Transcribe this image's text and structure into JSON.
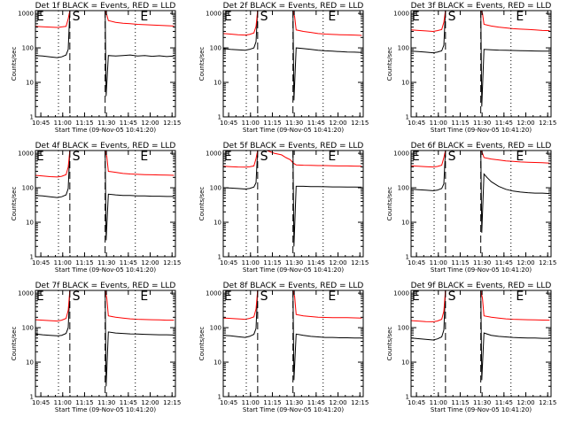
{
  "figure": {
    "xlabel": "Start Time (09-Nov-05 10:41:20)",
    "ylabel": "Counts/sec",
    "y_scale": "log",
    "ylim": [
      1,
      1200
    ],
    "y_ticks": [
      "1",
      "10",
      "100",
      "1000"
    ],
    "x_ticks": [
      "10:45",
      "11:00",
      "11:15",
      "11:30",
      "11:45",
      "12:00",
      "12:15"
    ],
    "x_tick_minutes": [
      3.7,
      18.7,
      33.7,
      48.7,
      63.7,
      78.7,
      93.7
    ],
    "xlim_minutes": [
      0,
      96
    ],
    "marker_labels": [
      "E",
      "S",
      "E"
    ],
    "marker_minutes": {
      "E1": 0.5,
      "S": 24.7,
      "E2": 71.3
    },
    "dotted_lines_minutes": [
      15.8,
      68.5
    ],
    "dashed_lines_minutes": [
      23.6,
      47.8
    ],
    "colors": {
      "events": "#000000",
      "lld": "#ff0000"
    },
    "grid": false
  },
  "chart_data": [
    {
      "type": "line",
      "title": "Det 1f  BLACK = Events, RED = LLD",
      "series": [
        {
          "name": "Events",
          "color": "#000000",
          "x": [
            0,
            5,
            10,
            15,
            18,
            21,
            22.5,
            23.6,
            47.8,
            48.5,
            50,
            55,
            60,
            65,
            70,
            75,
            80,
            85,
            90,
            95
          ],
          "values": [
            60,
            58,
            55,
            52,
            55,
            62,
            90,
            1200,
            1200,
            4,
            60,
            58,
            60,
            62,
            58,
            60,
            57,
            59,
            56,
            58
          ]
        },
        {
          "name": "LLD",
          "color": "#ff0000",
          "x": [
            0,
            5,
            10,
            15,
            18,
            21,
            22.5,
            23.6,
            47.8,
            49,
            50,
            55,
            60,
            65,
            70,
            75,
            80,
            85,
            90,
            95
          ],
          "values": [
            420,
            410,
            400,
            390,
            405,
            420,
            700,
            1200,
            1200,
            900,
            620,
            550,
            520,
            500,
            480,
            470,
            460,
            450,
            440,
            430
          ]
        }
      ]
    },
    {
      "type": "line",
      "title": "Det 2f  BLACK = Events, RED = LLD",
      "series": [
        {
          "name": "Events",
          "color": "#000000",
          "x": [
            0,
            5,
            10,
            15,
            18,
            21,
            22.5,
            23.6,
            47.8,
            48.5,
            50,
            55,
            60,
            65,
            70,
            75,
            80,
            85,
            90,
            95
          ],
          "values": [
            95,
            90,
            88,
            85,
            90,
            100,
            150,
            1200,
            1200,
            3,
            100,
            95,
            90,
            85,
            82,
            80,
            78,
            76,
            75,
            74
          ]
        },
        {
          "name": "LLD",
          "color": "#ff0000",
          "x": [
            0,
            5,
            10,
            15,
            18,
            21,
            22.5,
            23.6,
            47.8,
            49,
            50,
            55,
            60,
            65,
            70,
            75,
            80,
            85,
            90,
            95
          ],
          "values": [
            260,
            250,
            240,
            235,
            245,
            270,
            420,
            1200,
            1200,
            800,
            330,
            300,
            280,
            260,
            250,
            245,
            240,
            238,
            235,
            230
          ]
        }
      ]
    },
    {
      "type": "line",
      "title": "Det 3f  BLACK = Events, RED = LLD",
      "series": [
        {
          "name": "Events",
          "color": "#000000",
          "x": [
            0,
            5,
            10,
            15,
            18,
            21,
            22.5,
            23.6,
            47.8,
            48.5,
            50,
            55,
            60,
            65,
            70,
            75,
            80,
            85,
            90,
            95
          ],
          "values": [
            80,
            78,
            75,
            72,
            75,
            82,
            120,
            1200,
            1200,
            2,
            90,
            88,
            86,
            85,
            84,
            83,
            82,
            81,
            80,
            80
          ]
        },
        {
          "name": "LLD",
          "color": "#ff0000",
          "x": [
            0,
            5,
            10,
            15,
            18,
            21,
            22.5,
            23.6,
            47.8,
            49,
            50,
            55,
            60,
            65,
            70,
            75,
            80,
            85,
            90,
            95
          ],
          "values": [
            330,
            320,
            310,
            300,
            315,
            340,
            550,
            1200,
            1200,
            1000,
            480,
            430,
            400,
            380,
            360,
            350,
            340,
            330,
            320,
            315
          ]
        }
      ]
    },
    {
      "type": "line",
      "title": "Det 4f  BLACK = Events, RED = LLD",
      "series": [
        {
          "name": "Events",
          "color": "#000000",
          "x": [
            0,
            5,
            10,
            15,
            18,
            21,
            22.5,
            23.6,
            47.8,
            48.5,
            50,
            55,
            60,
            65,
            70,
            75,
            80,
            85,
            90,
            95
          ],
          "values": [
            60,
            58,
            55,
            52,
            55,
            62,
            95,
            1200,
            1200,
            3,
            65,
            62,
            60,
            60,
            58,
            58,
            57,
            57,
            56,
            56
          ]
        },
        {
          "name": "LLD",
          "color": "#ff0000",
          "x": [
            0,
            5,
            10,
            15,
            18,
            21,
            22.5,
            23.6,
            47.8,
            49,
            50,
            55,
            60,
            65,
            70,
            75,
            80,
            85,
            90,
            95
          ],
          "values": [
            230,
            220,
            210,
            205,
            215,
            240,
            400,
            1200,
            1200,
            800,
            300,
            280,
            260,
            250,
            245,
            240,
            238,
            235,
            232,
            230
          ]
        }
      ]
    },
    {
      "type": "line",
      "title": "Det 5f  BLACK = Events, RED = LLD",
      "series": [
        {
          "name": "Events",
          "color": "#000000",
          "x": [
            0,
            5,
            10,
            15,
            18,
            21,
            22.5,
            23.6,
            47.8,
            48.5,
            50,
            55,
            60,
            65,
            70,
            75,
            80,
            85,
            90,
            95
          ],
          "values": [
            100,
            98,
            95,
            92,
            95,
            105,
            140,
            1200,
            1200,
            2,
            110,
            110,
            108,
            108,
            107,
            106,
            106,
            105,
            105,
            104
          ]
        },
        {
          "name": "LLD",
          "color": "#ff0000",
          "x": [
            0,
            5,
            10,
            15,
            18,
            21,
            22.5,
            23.6,
            30,
            35,
            40,
            43,
            46,
            48,
            50,
            55,
            60,
            65,
            70,
            75,
            80,
            85,
            90,
            95
          ],
          "values": [
            420,
            410,
            400,
            395,
            405,
            430,
            700,
            1200,
            1200,
            1000,
            900,
            750,
            650,
            520,
            460,
            450,
            445,
            440,
            440,
            435,
            430,
            430,
            425,
            420
          ]
        }
      ]
    },
    {
      "type": "line",
      "title": "Det 6f  BLACK = Events, RED = LLD",
      "series": [
        {
          "name": "Events",
          "color": "#000000",
          "x": [
            0,
            5,
            10,
            15,
            18,
            21,
            22.5,
            23.6,
            47.8,
            48.5,
            50,
            52,
            55,
            60,
            65,
            70,
            75,
            80,
            85,
            90,
            95
          ],
          "values": [
            90,
            88,
            85,
            82,
            85,
            95,
            130,
            1200,
            1200,
            5,
            250,
            200,
            150,
            110,
            90,
            80,
            75,
            72,
            70,
            70,
            68
          ]
        },
        {
          "name": "LLD",
          "color": "#ff0000",
          "x": [
            0,
            5,
            10,
            15,
            18,
            21,
            22.5,
            23.6,
            47.8,
            49,
            50,
            55,
            60,
            65,
            70,
            75,
            80,
            85,
            90,
            95
          ],
          "values": [
            430,
            420,
            410,
            400,
            415,
            450,
            750,
            1200,
            1200,
            1000,
            750,
            680,
            640,
            600,
            580,
            560,
            550,
            540,
            530,
            520
          ]
        }
      ]
    },
    {
      "type": "line",
      "title": "Det 7f  BLACK = Events, RED = LLD",
      "series": [
        {
          "name": "Events",
          "color": "#000000",
          "x": [
            0,
            5,
            10,
            15,
            18,
            21,
            22.5,
            23.6,
            47.8,
            48.5,
            50,
            55,
            60,
            65,
            70,
            75,
            80,
            85,
            90,
            95
          ],
          "values": [
            65,
            62,
            60,
            58,
            60,
            68,
            100,
            1200,
            1200,
            2,
            75,
            70,
            68,
            66,
            65,
            64,
            63,
            62,
            62,
            61
          ]
        },
        {
          "name": "LLD",
          "color": "#ff0000",
          "x": [
            0,
            5,
            10,
            15,
            18,
            21,
            22.5,
            23.6,
            47.8,
            49,
            50,
            55,
            60,
            65,
            70,
            75,
            80,
            85,
            90,
            95
          ],
          "values": [
            170,
            165,
            160,
            155,
            165,
            185,
            320,
            1200,
            1200,
            700,
            220,
            200,
            190,
            180,
            175,
            172,
            170,
            168,
            165,
            165
          ]
        }
      ]
    },
    {
      "type": "line",
      "title": "Det 8f  BLACK = Events, RED = LLD",
      "series": [
        {
          "name": "Events",
          "color": "#000000",
          "x": [
            0,
            5,
            10,
            15,
            18,
            21,
            22.5,
            23.6,
            47.8,
            48.5,
            50,
            55,
            60,
            65,
            70,
            75,
            80,
            85,
            90,
            95
          ],
          "values": [
            60,
            58,
            55,
            52,
            56,
            64,
            95,
            1200,
            1200,
            3,
            65,
            60,
            56,
            54,
            52,
            52,
            51,
            51,
            50,
            50
          ]
        },
        {
          "name": "LLD",
          "color": "#ff0000",
          "x": [
            0,
            5,
            10,
            15,
            18,
            21,
            22.5,
            23.6,
            47.8,
            49,
            50,
            55,
            60,
            65,
            70,
            75,
            80,
            85,
            90,
            95
          ],
          "values": [
            190,
            185,
            180,
            175,
            185,
            205,
            350,
            1200,
            1200,
            800,
            240,
            220,
            210,
            200,
            198,
            196,
            195,
            194,
            192,
            190
          ]
        }
      ]
    },
    {
      "type": "line",
      "title": "Det 9f  BLACK = Events, RED = LLD",
      "series": [
        {
          "name": "Events",
          "color": "#000000",
          "x": [
            0,
            5,
            10,
            15,
            18,
            21,
            22.5,
            23.6,
            47.8,
            48.5,
            50,
            55,
            60,
            65,
            70,
            75,
            80,
            85,
            90,
            95
          ],
          "values": [
            50,
            48,
            46,
            44,
            47,
            54,
            85,
            1200,
            1200,
            3,
            70,
            60,
            56,
            54,
            52,
            51,
            50,
            50,
            49,
            49
          ]
        },
        {
          "name": "LLD",
          "color": "#ff0000",
          "x": [
            0,
            5,
            10,
            15,
            18,
            21,
            22.5,
            23.6,
            47.8,
            49,
            50,
            55,
            60,
            65,
            70,
            75,
            80,
            85,
            90,
            95
          ],
          "values": [
            160,
            155,
            150,
            148,
            155,
            175,
            300,
            1200,
            1200,
            700,
            220,
            200,
            190,
            180,
            175,
            172,
            170,
            168,
            166,
            165
          ]
        }
      ]
    }
  ]
}
